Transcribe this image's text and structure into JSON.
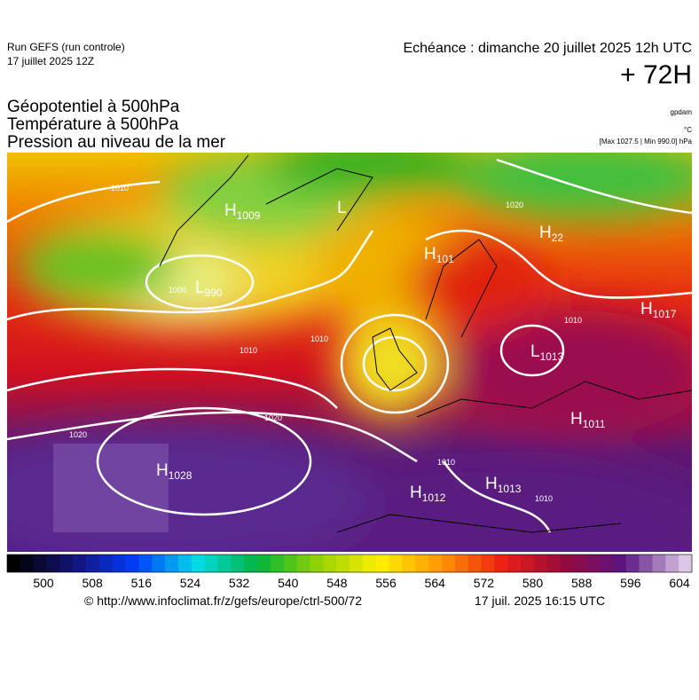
{
  "header": {
    "run": "Run GEFS (run controle)",
    "run_date": "17 juillet 2025 12Z",
    "echeance": "Echéance : dimanche 20 juillet 2025 12h UTC",
    "lead": "+ 72H"
  },
  "fields": [
    "Géopotentiel à 500hPa",
    "Température à 500hPa",
    "Pression au niveau de la mer"
  ],
  "units": [
    "gpdam",
    "°C",
    "[Max 1027.5 | Min 990.0] hPa"
  ],
  "centers": [
    {
      "kind": "H",
      "value": "1009"
    },
    {
      "kind": "L",
      "value": ""
    },
    {
      "kind": "H",
      "value": "101"
    },
    {
      "kind": "H",
      "value": "22"
    },
    {
      "kind": "H",
      "value": "1017"
    },
    {
      "kind": "L",
      "value": "990"
    },
    {
      "kind": "L",
      "value": "1013"
    },
    {
      "kind": "H",
      "value": "1011"
    },
    {
      "kind": "H",
      "value": "1028"
    },
    {
      "kind": "H",
      "value": "1012"
    },
    {
      "kind": "H",
      "value": "1013"
    }
  ],
  "isobar_labels": [
    "1010",
    "1000",
    "1010",
    "1010",
    "1020",
    "1020",
    "1010",
    "1010",
    "1010",
    "1020"
  ],
  "colorbar": {
    "ticks": [
      500,
      508,
      516,
      524,
      532,
      540,
      548,
      556,
      564,
      572,
      580,
      588,
      596,
      604
    ]
  },
  "footer": {
    "url": "© http://www.infoclimat.fr/z/gefs/europe/ctrl-500/72",
    "issued": "17 juil. 2025 16:15 UTC"
  }
}
